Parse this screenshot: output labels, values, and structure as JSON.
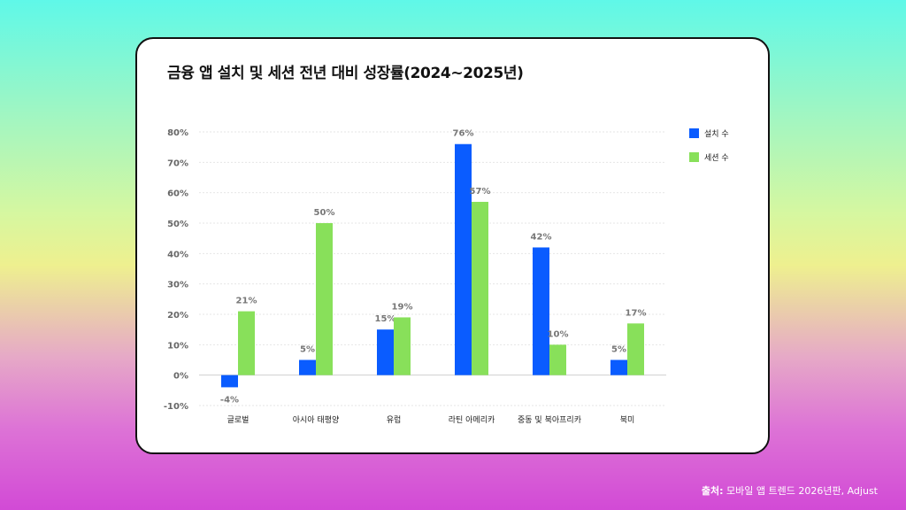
{
  "colors": {
    "installs": "#0a5cff",
    "sessions": "#88e05a",
    "grid": "#e6e6e6",
    "tick_label": "#666666",
    "value_label": "#777777"
  },
  "chart_data": {
    "type": "bar",
    "title": "금융 앱 설치 및 세션 전년 대비 성장률(2024~2025년)",
    "categories": [
      "글로벌",
      "아시아 태평양",
      "유럽",
      "라틴 아메리카",
      "중동 및 북아프리카",
      "북미"
    ],
    "series": [
      {
        "name": "설치 수",
        "values": [
          -4,
          5,
          15,
          76,
          42,
          5
        ],
        "color": "#0a5cff"
      },
      {
        "name": "세션 수",
        "values": [
          21,
          50,
          19,
          57,
          10,
          17
        ],
        "color": "#88e05a"
      }
    ],
    "ylim": [
      -10,
      80
    ],
    "yticks": [
      80,
      70,
      60,
      50,
      40,
      30,
      20,
      10,
      0,
      -10
    ],
    "ytick_suffix": "%",
    "value_suffix": "%",
    "grid": true,
    "legend_position": "top-right"
  },
  "footer": {
    "source_label": "출처:",
    "source_text": "모바일 앱 트렌드 2026년판, Adjust"
  }
}
